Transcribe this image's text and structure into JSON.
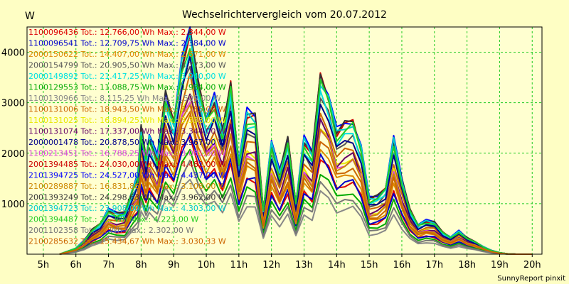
{
  "chart_data": {
    "type": "line",
    "title": "Wechselrichtervergleich vom 20.07.2012",
    "ylabel": "W",
    "xlabel": "",
    "footer": "SunnyReport pinxit",
    "grid": true,
    "legend_position": "top-left",
    "colors": {
      "background": "#fefec4",
      "plot_background": "#ffffd0",
      "grid": "#22cc22",
      "axis": "#000000"
    },
    "xlim": [
      4.5,
      20.3
    ],
    "ylim": [
      0,
      4500
    ],
    "xticks": [
      {
        "value": 5,
        "label": "5h"
      },
      {
        "value": 6,
        "label": "6h"
      },
      {
        "value": 7,
        "label": "7h"
      },
      {
        "value": 8,
        "label": "8h"
      },
      {
        "value": 9,
        "label": "9h"
      },
      {
        "value": 10,
        "label": "10h"
      },
      {
        "value": 11,
        "label": "11h"
      },
      {
        "value": 12,
        "label": "12h"
      },
      {
        "value": 13,
        "label": "13h"
      },
      {
        "value": 14,
        "label": "14h"
      },
      {
        "value": 15,
        "label": "15h"
      },
      {
        "value": 16,
        "label": "16h"
      },
      {
        "value": 17,
        "label": "17h"
      },
      {
        "value": 18,
        "label": "18h"
      },
      {
        "value": 19,
        "label": "19h"
      },
      {
        "value": 20,
        "label": "20h"
      }
    ],
    "yticks": [
      {
        "value": 1000,
        "label": "1000"
      },
      {
        "value": 2000,
        "label": "2000"
      },
      {
        "value": 3000,
        "label": "3000"
      },
      {
        "value": 4000,
        "label": "4000"
      }
    ],
    "x": [
      5.5,
      6.0,
      6.25,
      6.5,
      6.75,
      7.0,
      7.25,
      7.5,
      7.75,
      7.9,
      8.0,
      8.15,
      8.25,
      8.5,
      8.75,
      9.0,
      9.25,
      9.5,
      9.75,
      10.0,
      10.25,
      10.5,
      10.75,
      11.0,
      11.25,
      11.5,
      11.75,
      12.0,
      12.25,
      12.5,
      12.75,
      13.0,
      13.25,
      13.5,
      13.75,
      14.0,
      14.25,
      14.5,
      14.75,
      15.0,
      15.25,
      15.5,
      15.75,
      16.0,
      16.25,
      16.5,
      16.75,
      17.0,
      17.25,
      17.5,
      17.75,
      18.0,
      18.25,
      18.5,
      18.75,
      19.0,
      19.25,
      19.5,
      20.0
    ],
    "base_profile": [
      0,
      80,
      180,
      330,
      420,
      600,
      550,
      560,
      900,
      1050,
      1700,
      1300,
      1600,
      1300,
      2150,
      1800,
      2600,
      3000,
      2300,
      1850,
      2100,
      1650,
      2300,
      1250,
      1900,
      1850,
      600,
      1500,
      1100,
      1550,
      700,
      1550,
      1350,
      2400,
      2150,
      1650,
      1750,
      1800,
      1450,
      750,
      780,
      900,
      1550,
      1000,
      600,
      400,
      450,
      430,
      300,
      230,
      310,
      220,
      170,
      100,
      50,
      20,
      5,
      0,
      0
    ],
    "series": [
      {
        "label": "1100096436 Tot.: 12.766,00 Wh Max.: 2.344,00 W",
        "color": "#dd0000",
        "scale": 0.79
      },
      {
        "label": "1100096541 Tot.: 12.709,75 Wh Max.: 2.384,00 W",
        "color": "#0000cc",
        "scale": 0.8
      },
      {
        "label": "2000150622 Tot.: 14.407,00 Wh Max.: 2.671,00 W",
        "color": "#dd8800",
        "scale": 0.89
      },
      {
        "label": "2000154799 Tot.: 20.905,50 Wh Max.: 3.773,00 W",
        "color": "#555555",
        "scale": 1.28
      },
      {
        "label": "2000149892 Tot.: 21.417,25 Wh Max.: 3.940,00 W",
        "color": "#00e0e0",
        "scale": 1.32
      },
      {
        "label": "1100129553 Tot.: 11.088,75 Wh Max.: 1.984,00 W",
        "color": "#00aa00",
        "scale": 0.68
      },
      {
        "label": "1100130966 Tot.: 8.115,25 Wh Max.: 1.509,00 W",
        "color": "#888888",
        "scale": 0.51
      },
      {
        "label": "1100131006 Tot.: 18.943,50 Wh Max.: 3.785,00 W",
        "color": "#cc6600",
        "scale": 1.16
      },
      {
        "label": "1100131025 Tot.: 16.894,25 Wh Max.: 3.333,00 W",
        "color": "#e8e800",
        "scale": 1.06
      },
      {
        "label": "1100131074 Tot.: 17.337,00 Wh Max.: 3.344,00 W",
        "color": "#660066",
        "scale": 1.08
      },
      {
        "label": "2000001478 Tot.: 20.878,50 Wh Max.: 3.967,00 W",
        "color": "#000088",
        "scale": 1.26
      },
      {
        "label": "1100213451 Tot.: 16.788,25 Wh Max.: 3.081,00 W",
        "color": "#dd44dd",
        "scale": 1.03
      },
      {
        "label": "2001394485 Tot.: 24.030,00 Wh Max.: 4.482,00 W",
        "color": "#cc0000",
        "scale": 1.45
      },
      {
        "label": "2101394725 Tot.: 24.527,00 Wh Max.: 4.437,00 W",
        "color": "#0000ff",
        "scale": 1.48
      },
      {
        "label": "2100289887 Tot.: 16.831,86 Wh Max.: 3.108,00 W",
        "color": "#cc8800",
        "scale": 1.02
      },
      {
        "label": "2001393249 Tot.: 24.298,63 Wh Max.: 3.962,00 W",
        "color": "#333333",
        "scale": 1.46
      },
      {
        "label": "2001394723 Tot.: 23.908,00 Wh Max.: 4.303,00 W",
        "color": "#00cccc",
        "scale": 1.44
      },
      {
        "label": "2001394487 Tot.: 2... Wh Max.: 4.223,00 W",
        "color": "#22cc22",
        "scale": 1.4
      },
      {
        "label": "2001102358 Tot.: ... Wh Max.: 2.302,00 W",
        "color": "#777777",
        "scale": 0.6
      },
      {
        "label": "2100285632 Tot.: 15.434,67 Wh Max.: 3.030,33 W",
        "color": "#cc6600",
        "scale": 0.95
      }
    ]
  }
}
